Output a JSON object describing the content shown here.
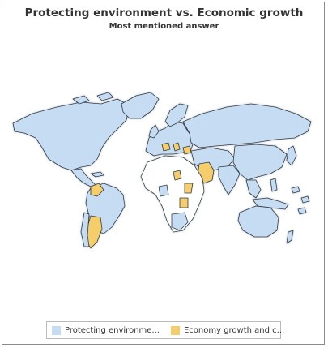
{
  "chart_data": {
    "type": "map",
    "title": "Protecting environment vs. Economic growth",
    "subtitle": "Most mentioned answer",
    "legend_placement": "bottom",
    "categories": [
      {
        "label": "Protecting environme...",
        "color": "#c6dcf2"
      },
      {
        "label": "Economy growth and c...",
        "color": "#f5cd6a"
      }
    ],
    "no_data_color": "#ffffff",
    "border_color": "#2f3b47"
  }
}
